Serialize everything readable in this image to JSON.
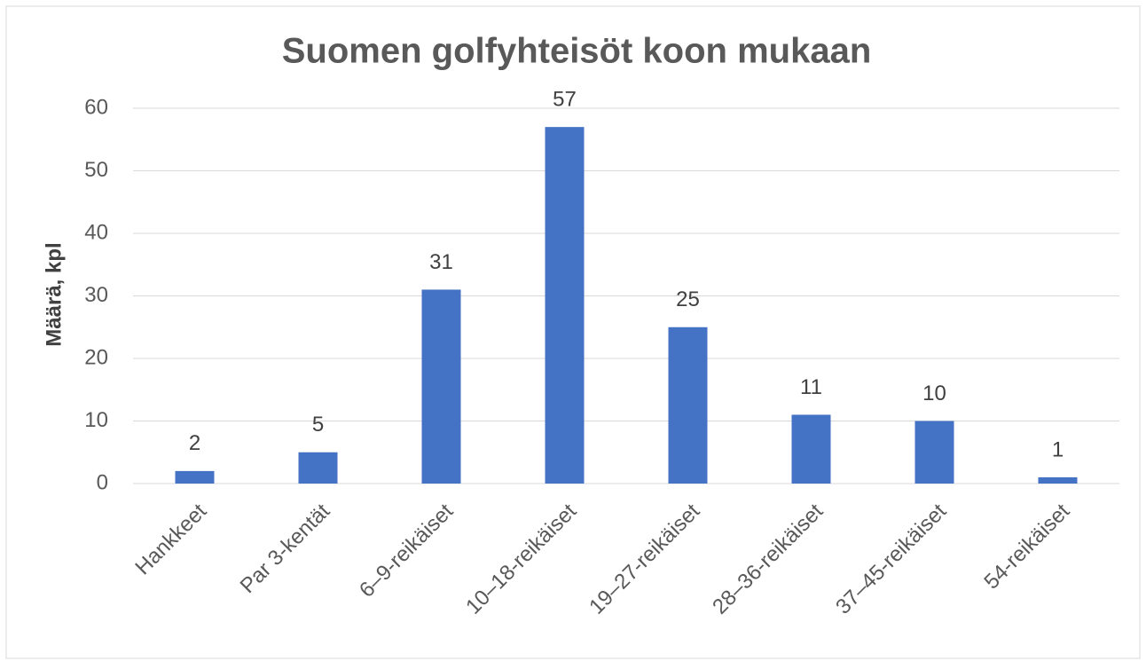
{
  "chart_data": {
    "type": "bar",
    "title": "Suomen golfyhteisöt koon mukaan",
    "y_label": "Määrä, kpl",
    "categories": [
      "Hankkeet",
      "Par 3-kentät",
      "6–9-reikäiset",
      "10–18-reikäiset",
      "19–27-reikäiset",
      "28–36-reikäiset",
      "37–45-reikäiset",
      "54-reikäiset"
    ],
    "values": [
      2,
      5,
      31,
      57,
      25,
      11,
      10,
      1
    ],
    "color": "#4472c4",
    "ylim": [
      0,
      60
    ],
    "yticks": [
      0,
      10,
      20,
      30,
      40,
      50,
      60
    ],
    "grid": true
  }
}
